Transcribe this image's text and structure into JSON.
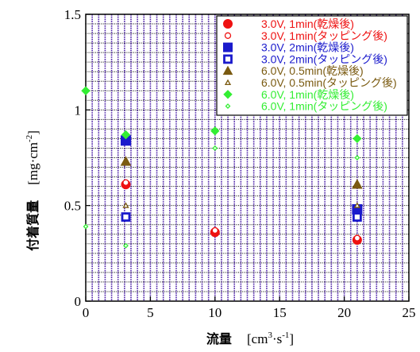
{
  "chart_data": {
    "type": "scatter",
    "xlabel": "流量",
    "xunit_base": "[cm",
    "xunit_sup1": "3",
    "xunit_mid": "·s",
    "xunit_sup2": "-1",
    "xunit_end": "]",
    "ylabel": "付着質量",
    "yunit_base": "[mg·cm",
    "yunit_sup": "-2",
    "yunit_end": "]",
    "xlim": [
      0,
      25
    ],
    "ylim": [
      0,
      1.5
    ],
    "xticks": [
      0,
      5,
      10,
      15,
      20,
      25
    ],
    "yticks": [
      0,
      0.5,
      1,
      1.5
    ],
    "xtick_labels": [
      "0",
      "5",
      "10",
      "15",
      "20",
      "25"
    ],
    "ytick_labels": [
      "0",
      "0.5",
      "1",
      "1.5"
    ],
    "grid": true,
    "legend_position": "top-right",
    "series": [
      {
        "name": "3.0V, 1min(乾燥後)",
        "color": "#ee1111",
        "marker": "circle",
        "filled": true,
        "size": 11,
        "points": [
          [
            3.1,
            0.61
          ],
          [
            10,
            0.36
          ],
          [
            21,
            0.32
          ]
        ]
      },
      {
        "name": "3.0V, 1min(タッピング後)",
        "color": "#ee1111",
        "marker": "circle",
        "filled": false,
        "size": 7,
        "points": [
          [
            3.1,
            0.62
          ],
          [
            10,
            0.37
          ],
          [
            21,
            0.33
          ]
        ]
      },
      {
        "name": "3.0V, 2min(乾燥後)",
        "color": "#1a1acc",
        "marker": "square",
        "filled": true,
        "size": 12,
        "points": [
          [
            3.1,
            0.84
          ],
          [
            21,
            0.48
          ]
        ]
      },
      {
        "name": "3.0V, 2min(タッピング後)",
        "color": "#1a1acc",
        "marker": "square",
        "filled": false,
        "size": 9,
        "points": [
          [
            3.1,
            0.44
          ],
          [
            21,
            0.44
          ]
        ]
      },
      {
        "name": "6.0V, 0.5min(乾燥後)",
        "color": "#7a5a10",
        "marker": "triangle",
        "filled": true,
        "size": 12,
        "points": [
          [
            3.1,
            0.73
          ],
          [
            21,
            0.61
          ]
        ]
      },
      {
        "name": "6.0V, 0.5min(タッピング後)",
        "color": "#7a5a10",
        "marker": "triangle",
        "filled": false,
        "size": 6,
        "points": [
          [
            3.1,
            0.5
          ],
          [
            21,
            0.5
          ]
        ]
      },
      {
        "name": "6.0V, 1min(乾燥後)",
        "color": "#33ee33",
        "marker": "diamond",
        "filled": true,
        "size": 10,
        "points": [
          [
            0,
            1.1
          ],
          [
            3.1,
            0.87
          ],
          [
            10,
            0.89
          ],
          [
            21,
            0.85
          ]
        ]
      },
      {
        "name": "6.0V, 1min(タッピング後)",
        "color": "#33ee33",
        "marker": "diamond",
        "filled": false,
        "size": 5,
        "points": [
          [
            0,
            0.39
          ],
          [
            3.1,
            0.29
          ],
          [
            10,
            0.8
          ],
          [
            21,
            0.75
          ]
        ]
      }
    ]
  }
}
